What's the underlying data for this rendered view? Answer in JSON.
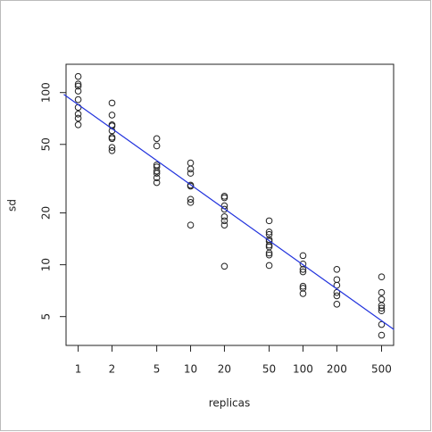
{
  "chart_data": {
    "type": "scatter",
    "x_label": "replicas",
    "y_label": "sd",
    "xlog": true,
    "ylog": true,
    "xlim": [
      0.78,
      640
    ],
    "ylim": [
      3.4,
      146
    ],
    "xticks": [
      1,
      2,
      5,
      10,
      20,
      50,
      100,
      200,
      500
    ],
    "yticks": [
      5,
      10,
      20,
      50,
      100
    ],
    "point_color": "#222222",
    "x": [
      1,
      1,
      1,
      1,
      1,
      1,
      1,
      1,
      1,
      2,
      2,
      2,
      2,
      2,
      2,
      2,
      2,
      2,
      5,
      5,
      5,
      5,
      5,
      5,
      5,
      5,
      10,
      10,
      10,
      10,
      10,
      10,
      10,
      10,
      20,
      20,
      20,
      20,
      20,
      20,
      20,
      20,
      50,
      50,
      50,
      50,
      50,
      50,
      50,
      50,
      50,
      50,
      100,
      100,
      100,
      100,
      100,
      100,
      100,
      200,
      200,
      200,
      200,
      200,
      200,
      500,
      500,
      500,
      500,
      500,
      500,
      500,
      500
    ],
    "y": [
      124,
      112,
      109,
      102,
      91,
      82,
      75,
      71,
      65,
      87,
      74,
      65,
      64,
      60,
      55,
      54,
      48,
      46,
      54,
      49,
      38,
      37,
      35,
      34,
      32,
      30,
      39,
      36,
      34,
      29,
      28.6,
      24,
      23,
      17,
      25,
      24.5,
      22,
      21,
      19,
      18,
      17,
      9.8,
      18,
      15.5,
      15,
      14,
      13.7,
      13,
      12.7,
      11.7,
      11.4,
      9.9,
      11.3,
      10.1,
      9.4,
      9.1,
      7.5,
      7.3,
      6.8,
      9.4,
      8.2,
      7.6,
      6.9,
      6.6,
      5.9,
      8.5,
      6.9,
      6.3,
      5.8,
      5.6,
      5.4,
      4.5,
      3.9
    ],
    "fit": {
      "color": "#2233dd",
      "x": [
        0.745,
        645
      ],
      "y": [
        97.6,
        4.2
      ]
    }
  }
}
